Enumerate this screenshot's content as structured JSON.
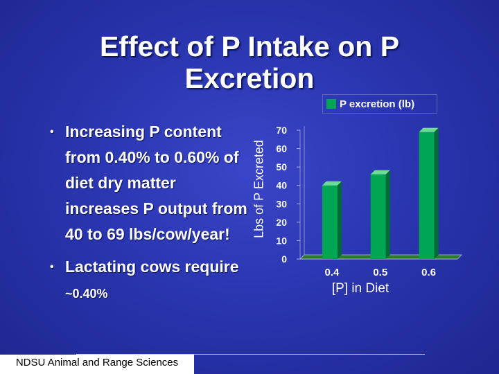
{
  "slide": {
    "title": "Effect of P Intake on P Excretion",
    "bullets": [
      "Increasing P content from 0.40% to 0.60% of diet dry matter increases P output from 40 to 69 lbs/cow/year!"
    ],
    "bullet2_main": "Lactating cows require",
    "bullet2_small": "~0.40%",
    "bullet_symbol": "•",
    "footer": "NDSU Animal and Range Sciences"
  },
  "colors": {
    "bar": "#00a651",
    "bar_dark": "#006b33",
    "bar_light": "#6fdc95",
    "floor": "#2a7a2a"
  },
  "chart_data": {
    "type": "bar",
    "title": "",
    "categories": [
      "0.4",
      "0.5",
      "0.6"
    ],
    "series": [
      {
        "name": "P excretion (lb)",
        "values": [
          40,
          46,
          69
        ]
      }
    ],
    "xlabel": "[P] in Diet",
    "ylabel": "Lbs of P Excreted",
    "ylim": [
      0,
      70
    ],
    "yticks": [
      "0",
      "10",
      "20",
      "30",
      "40",
      "50",
      "60",
      "70"
    ],
    "legend": "top-right"
  }
}
